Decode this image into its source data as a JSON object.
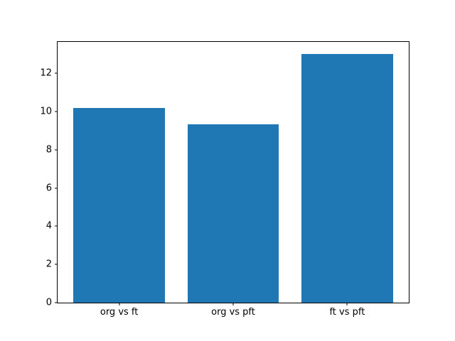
{
  "figure": {
    "background": "#ffffff"
  },
  "chart_data": {
    "type": "bar",
    "categories": [
      "org vs ft",
      "org vs pft",
      "ft vs pft"
    ],
    "values": [
      10.2,
      9.35,
      13.0
    ],
    "yticks": [
      0,
      2,
      4,
      6,
      8,
      10,
      12
    ],
    "ylim": [
      0,
      13.65
    ],
    "xlim": [
      -0.54,
      2.54
    ],
    "bar_width": 0.8,
    "bar_color": "#1f77b4",
    "spine_color": "#000000",
    "tick_label_color": "#000000",
    "grid": false
  }
}
